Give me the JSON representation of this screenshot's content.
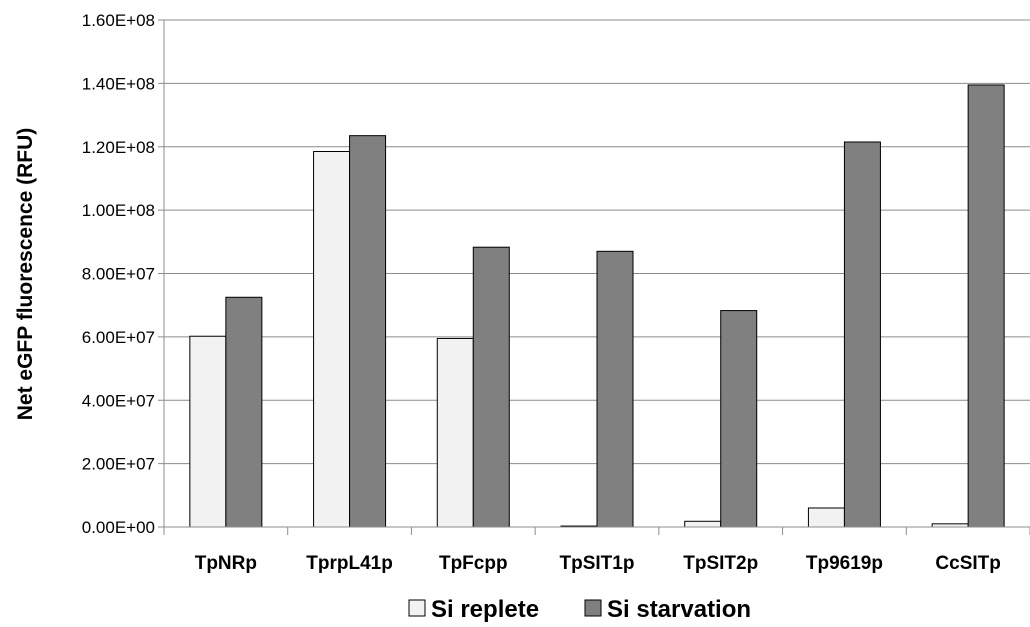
{
  "chart_data": {
    "type": "bar",
    "title": "",
    "xlabel": "",
    "ylabel": "Net eGFP fluorescence (RFU)",
    "ylim": [
      0,
      160000000
    ],
    "yticks": [
      0,
      20000000,
      40000000,
      60000000,
      80000000,
      100000000,
      120000000,
      140000000,
      160000000
    ],
    "ytick_labels": [
      "0.00E+00",
      "2.00E+07",
      "4.00E+07",
      "6.00E+07",
      "8.00E+07",
      "1.00E+08",
      "1.20E+08",
      "1.40E+08",
      "1.60E+08"
    ],
    "grid": true,
    "legend_position": "bottom",
    "categories": [
      "TpNRp",
      "TprpL41p",
      "TpFcpp",
      "TpSIT1p",
      "TpSIT2p",
      "Tp9619p",
      "CcSITp"
    ],
    "series": [
      {
        "name": "Si replete",
        "color": "#f2f2f2",
        "values": [
          60200000,
          118500000,
          59500000,
          300000,
          1800000,
          6000000,
          1000000
        ]
      },
      {
        "name": "Si starvation",
        "color": "#808080",
        "values": [
          72500000,
          123500000,
          88300000,
          87000000,
          68300000,
          121500000,
          139500000
        ]
      }
    ]
  }
}
